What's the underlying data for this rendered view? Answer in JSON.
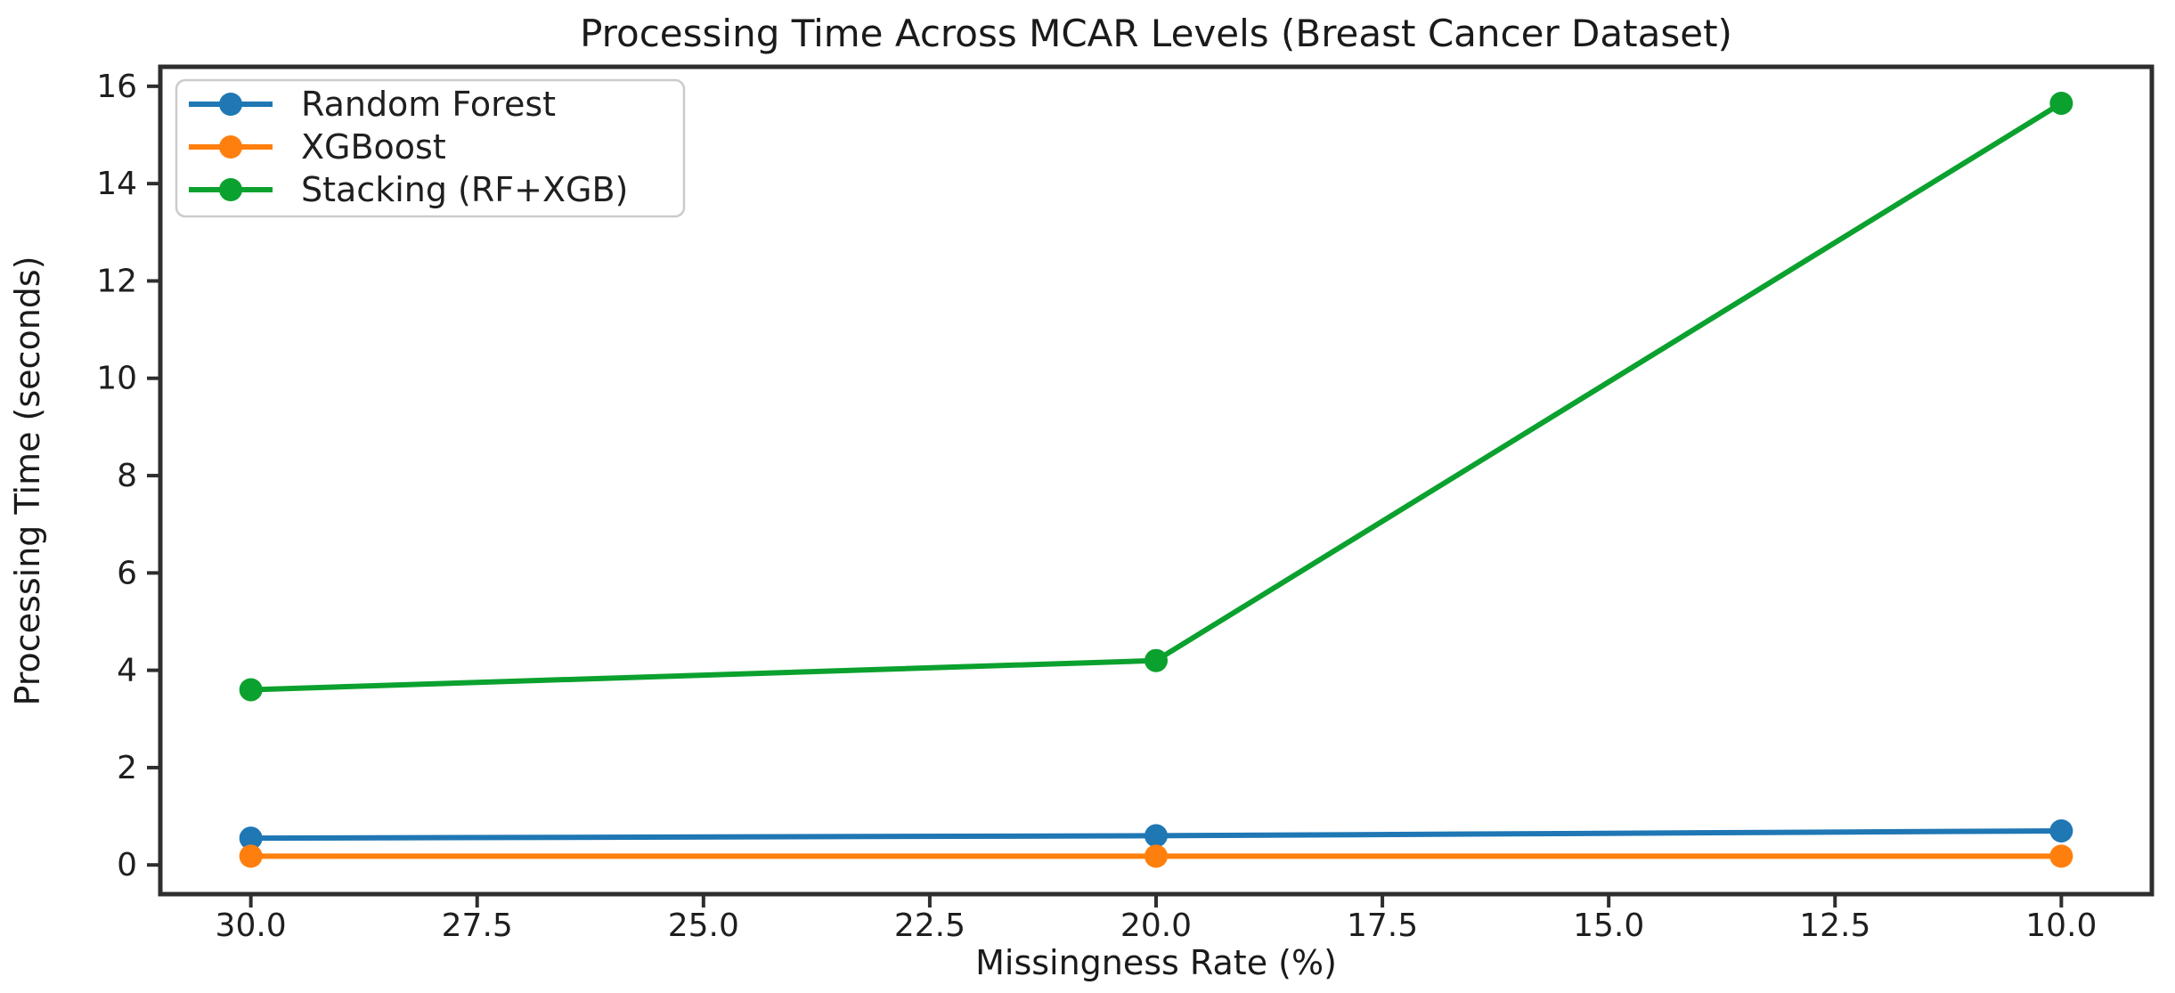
{
  "chart_data": {
    "type": "line",
    "title": "Processing Time Across MCAR Levels (Breast Cancer Dataset)",
    "xlabel": "Missingness Rate (%)",
    "ylabel": "Processing Time (seconds)",
    "x": [
      30.0,
      20.0,
      10.0
    ],
    "series": [
      {
        "name": "Random Forest",
        "color": "#1f77b4",
        "values": [
          0.55,
          0.6,
          0.7
        ]
      },
      {
        "name": "XGBoost",
        "color": "#ff7f0e",
        "values": [
          0.18,
          0.18,
          0.18
        ]
      },
      {
        "name": "Stacking (RF+XGB)",
        "color": "#0ba12e",
        "values": [
          3.6,
          4.2,
          15.65
        ]
      }
    ],
    "x_axis": {
      "tick_labels": [
        "30.0",
        "27.5",
        "25.0",
        "22.5",
        "20.0",
        "17.5",
        "15.0",
        "12.5",
        "10.0"
      ],
      "tick_values": [
        30,
        27.5,
        25,
        22.5,
        20,
        17.5,
        15,
        12.5,
        10
      ],
      "inverted": true,
      "range": [
        31,
        9
      ]
    },
    "y_axis": {
      "tick_labels": [
        "0",
        "2",
        "4",
        "6",
        "8",
        "10",
        "12",
        "14",
        "16"
      ],
      "tick_values": [
        0,
        2,
        4,
        6,
        8,
        10,
        12,
        14,
        16
      ],
      "range": [
        -0.6,
        16.4
      ]
    },
    "legend": {
      "position": "upper-left"
    },
    "grid": false,
    "colors": {
      "background": "#ffffff",
      "text": "#1a1a1a",
      "spine": "#2e2e2e",
      "legend_border": "#cbcbcb",
      "legend_fill": "#ffffff"
    }
  }
}
